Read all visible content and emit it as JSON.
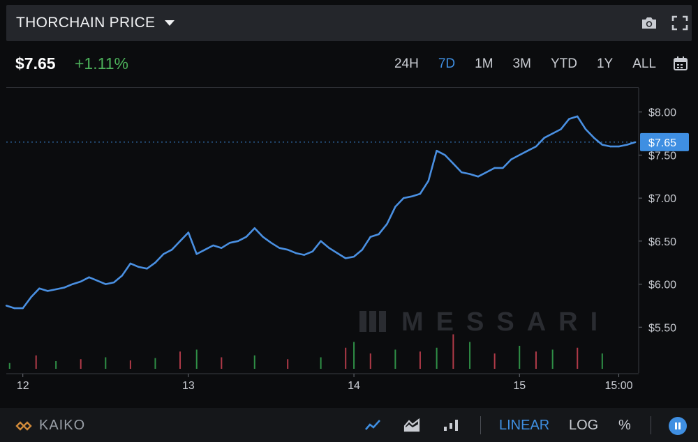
{
  "header": {
    "title": "THORCHAIN PRICE"
  },
  "price": {
    "current": "$7.65",
    "change": "+1.11%"
  },
  "ranges": [
    "24H",
    "7D",
    "1M",
    "3M",
    "YTD",
    "1Y",
    "ALL"
  ],
  "active_range": "7D",
  "watermark": "MESSARI",
  "footer": {
    "provider": "KAIKO",
    "scale_linear": "LINEAR",
    "scale_log": "LOG",
    "scale_percent": "%"
  },
  "colors": {
    "line": "#4a90e2",
    "accent": "#3f8fe2",
    "positive": "#4cb05a",
    "volume_up": "#2f8f46",
    "volume_down": "#b03a48"
  },
  "chart_data": {
    "type": "line",
    "title": "THORCHAIN PRICE",
    "xlabel": "",
    "ylabel": "",
    "x_ticks": [
      "12",
      "13",
      "14",
      "15",
      "15:00"
    ],
    "x_tick_pos": [
      0,
      1,
      2,
      3,
      3.6
    ],
    "y_ticks": [
      "$5.50",
      "$6.00",
      "$6.50",
      "$7.00",
      "$7.50",
      "$8.00"
    ],
    "y_tick_values": [
      5.5,
      6.0,
      6.5,
      7.0,
      7.5,
      8.0
    ],
    "ylim": [
      5.0,
      8.2
    ],
    "x_range": [
      -0.1,
      3.72
    ],
    "current_label": "$7.65",
    "current_value": 7.65,
    "series": [
      {
        "x": [
          -0.1,
          -0.05,
          0.0,
          0.05,
          0.1,
          0.15,
          0.2,
          0.25,
          0.3,
          0.35,
          0.4,
          0.45,
          0.5,
          0.55,
          0.6,
          0.65,
          0.7,
          0.75,
          0.8,
          0.85,
          0.9,
          0.95,
          1.0,
          1.05,
          1.1,
          1.15,
          1.2,
          1.25,
          1.3,
          1.35,
          1.4,
          1.45,
          1.5,
          1.55,
          1.6,
          1.65,
          1.7,
          1.75,
          1.8,
          1.85,
          1.9,
          1.95,
          2.0,
          2.05,
          2.1,
          2.15,
          2.2,
          2.25,
          2.3,
          2.35,
          2.4,
          2.45,
          2.5,
          2.55,
          2.6,
          2.65,
          2.7,
          2.75,
          2.8,
          2.85,
          2.9,
          2.95,
          3.0,
          3.05,
          3.1,
          3.15,
          3.2,
          3.25,
          3.3,
          3.35,
          3.4,
          3.45,
          3.5,
          3.55,
          3.6,
          3.65,
          3.7
        ],
        "values": [
          5.75,
          5.72,
          5.72,
          5.85,
          5.95,
          5.92,
          5.94,
          5.96,
          6.0,
          6.03,
          6.08,
          6.04,
          6.0,
          6.02,
          6.1,
          6.24,
          6.2,
          6.18,
          6.25,
          6.35,
          6.4,
          6.5,
          6.6,
          6.35,
          6.4,
          6.45,
          6.42,
          6.48,
          6.5,
          6.55,
          6.65,
          6.55,
          6.48,
          6.42,
          6.4,
          6.36,
          6.34,
          6.38,
          6.5,
          6.42,
          6.36,
          6.3,
          6.32,
          6.4,
          6.55,
          6.58,
          6.7,
          6.9,
          7.0,
          7.02,
          7.05,
          7.2,
          7.55,
          7.5,
          7.4,
          7.3,
          7.28,
          7.25,
          7.3,
          7.35,
          7.35,
          7.45,
          7.5,
          7.55,
          7.6,
          7.7,
          7.75,
          7.8,
          7.92,
          7.95,
          7.8,
          7.7,
          7.62,
          7.6,
          7.6,
          7.62,
          7.65
        ]
      }
    ],
    "volume": {
      "x": [
        -0.08,
        0.08,
        0.2,
        0.35,
        0.5,
        0.65,
        0.8,
        0.95,
        1.05,
        1.2,
        1.4,
        1.6,
        1.8,
        1.95,
        2.0,
        2.1,
        2.25,
        2.4,
        2.5,
        2.6,
        2.7,
        2.85,
        3.0,
        3.1,
        3.2,
        3.35,
        3.5
      ],
      "values": [
        0.15,
        0.35,
        0.2,
        0.25,
        0.3,
        0.22,
        0.28,
        0.45,
        0.5,
        0.3,
        0.35,
        0.25,
        0.3,
        0.55,
        0.7,
        0.4,
        0.5,
        0.45,
        0.55,
        0.9,
        0.7,
        0.4,
        0.6,
        0.45,
        0.5,
        0.55,
        0.4
      ]
    }
  }
}
